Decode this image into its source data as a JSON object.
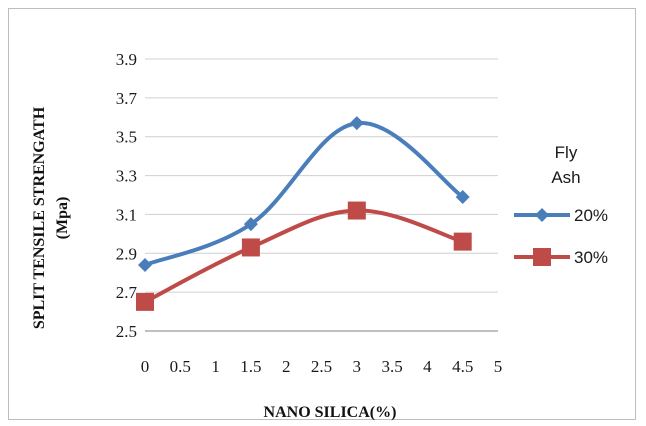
{
  "chart_data": {
    "type": "line",
    "title": "",
    "xlabel": "NANO SILICA(%)",
    "ylabel_line1": "SPLIT  TENSILE STRENGATH",
    "ylabel_line2": "(Mpa)",
    "xlim": [
      0,
      5
    ],
    "ylim": [
      2.5,
      3.9
    ],
    "x_ticks": [
      "0",
      "0.5",
      "1",
      "1.5",
      "2",
      "2.5",
      "3",
      "3.5",
      "4",
      "4.5",
      "5"
    ],
    "y_ticks": [
      "2.5",
      "2.7",
      "2.9",
      "3.1",
      "3.3",
      "3.5",
      "3.7",
      "3.9"
    ],
    "grid": "horizontal",
    "legend_title_line1": "Fly",
    "legend_title_line2": "Ash",
    "legend_position": "right",
    "smooth": true,
    "series": [
      {
        "name": "20%",
        "marker": "diamond",
        "color": "#4a7ebb",
        "x": [
          0,
          1.5,
          3,
          4.5
        ],
        "y": [
          2.84,
          3.05,
          3.57,
          3.19
        ]
      },
      {
        "name": "30%",
        "marker": "square",
        "color": "#be4b48",
        "x": [
          0,
          1.5,
          3,
          4.5
        ],
        "y": [
          2.65,
          2.93,
          3.12,
          2.96
        ]
      }
    ]
  }
}
